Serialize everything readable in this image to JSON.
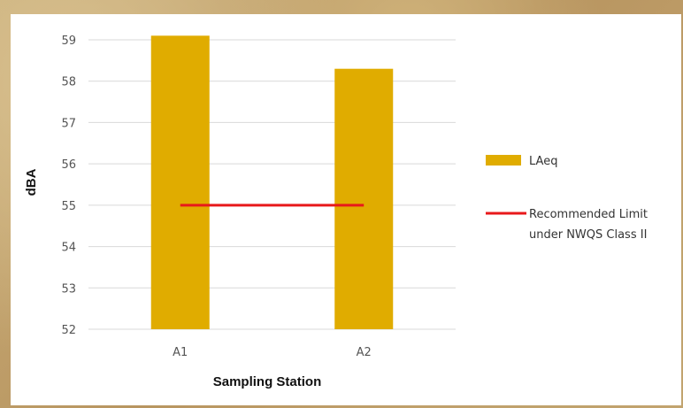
{
  "chart_data": {
    "type": "bar",
    "categories": [
      "A1",
      "A2"
    ],
    "series": [
      {
        "name": "LAeq",
        "kind": "bar",
        "values": [
          59.1,
          58.3
        ],
        "color": "#e0ac00"
      },
      {
        "name": "Recommended Limit under NWQS Class II",
        "kind": "line",
        "values": [
          55,
          55
        ],
        "color": "#e8191b"
      }
    ],
    "xlabel": "Sampling Station",
    "ylabel": "dBA",
    "ylim": [
      52,
      59
    ],
    "yticks": [
      "52",
      "53",
      "54",
      "55",
      "56",
      "57",
      "58",
      "59"
    ],
    "grid": true,
    "legend_position": "right",
    "legend": [
      {
        "label": "LAeq",
        "symbol": "bar"
      },
      {
        "label_lines": [
          "Recommended Limit",
          "under NWQS Class II"
        ],
        "symbol": "line"
      }
    ]
  }
}
